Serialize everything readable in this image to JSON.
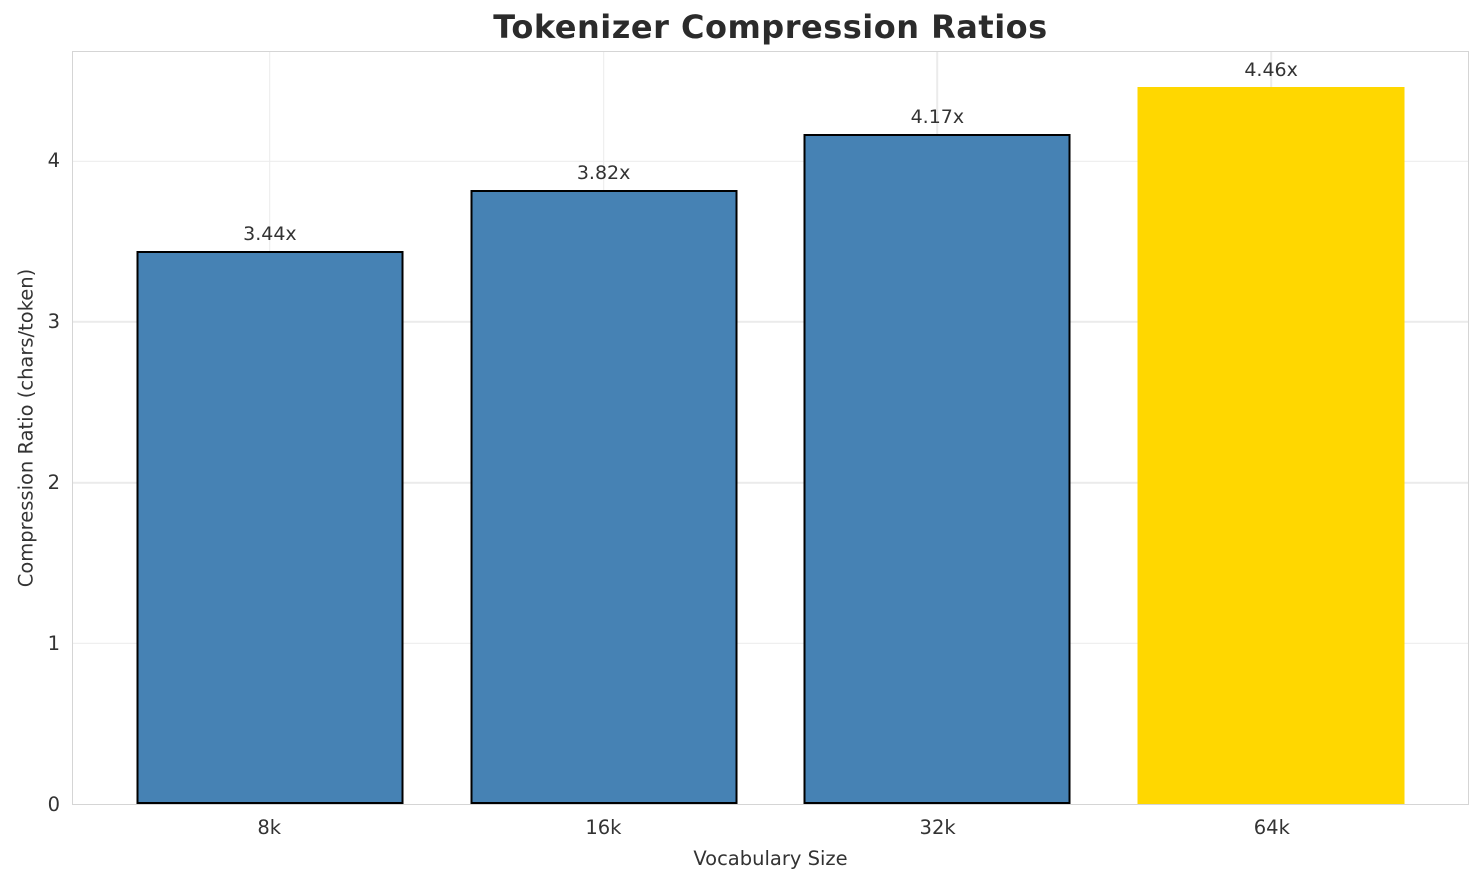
{
  "chart_data": {
    "type": "bar",
    "title": "Tokenizer Compression Ratios",
    "xlabel": "Vocabulary Size",
    "ylabel": "Compression Ratio (chars/token)",
    "categories": [
      "8k",
      "16k",
      "32k",
      "64k"
    ],
    "values": [
      3.44,
      3.82,
      4.17,
      4.46
    ],
    "bar_labels": [
      "3.44x",
      "3.82x",
      "4.17x",
      "4.46x"
    ],
    "bar_colors": [
      "#4682b4",
      "#4682b4",
      "#4682b4",
      "#ffd700"
    ],
    "bar_edge_colors": [
      "#000000",
      "#000000",
      "#000000",
      "#ffd700"
    ],
    "highlight_index": 3,
    "ylim": [
      0,
      4.68
    ],
    "yticks": [
      0,
      1,
      2,
      3,
      4
    ],
    "grid": true,
    "legend": "none",
    "colors": {
      "bar_default": "#4682b4",
      "bar_highlight": "#ffd700",
      "grid": "#ebebeb",
      "spine": "#d5d5d5",
      "text": "#333333",
      "title": "#2b2b2b",
      "background": "#ffffff"
    }
  }
}
